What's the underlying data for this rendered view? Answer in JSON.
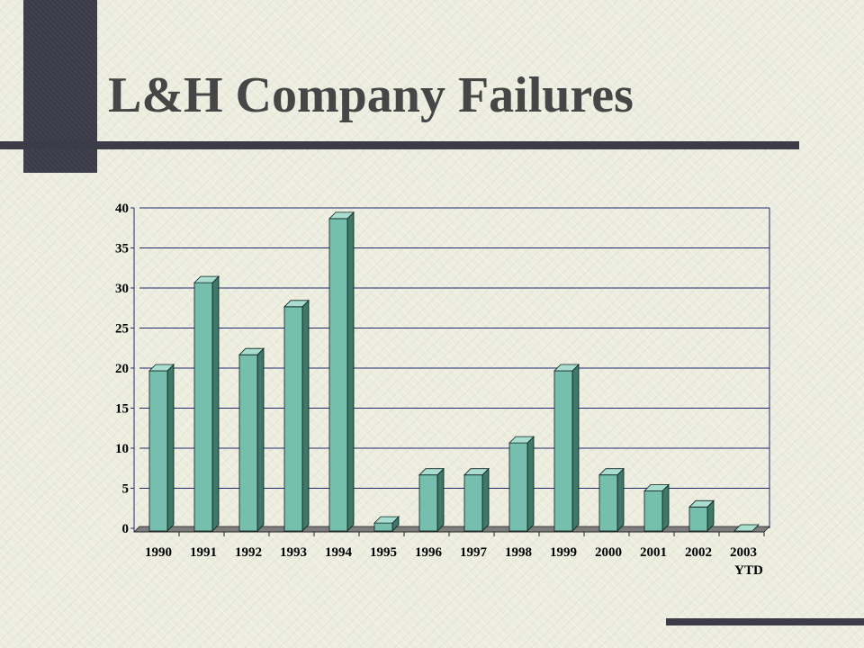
{
  "slide": {
    "title": "L&H Company Failures"
  },
  "colors": {
    "background": "#eceddf",
    "accent_dark": "#3b3c48",
    "bar_front": "#76bfae",
    "bar_side": "#3f7768",
    "bar_top": "#a9ddd0",
    "floor": "#7d7d7d",
    "grid": "#1f2a6b"
  },
  "chart_data": {
    "type": "bar",
    "title": "",
    "xlabel": "",
    "ylabel": "",
    "categories": [
      "1990",
      "1991",
      "1992",
      "1993",
      "1994",
      "1995",
      "1996",
      "1997",
      "1998",
      "1999",
      "2000",
      "2001",
      "2002",
      "2003\nYTD"
    ],
    "values": [
      20,
      31,
      22,
      28,
      39,
      1,
      7,
      7,
      11,
      20,
      7,
      5,
      3,
      0
    ],
    "ylim": [
      0,
      40
    ],
    "yticks": [
      0,
      5,
      10,
      15,
      20,
      25,
      30,
      35,
      40
    ],
    "grid": true,
    "legend": "none",
    "style": "3d-column"
  }
}
